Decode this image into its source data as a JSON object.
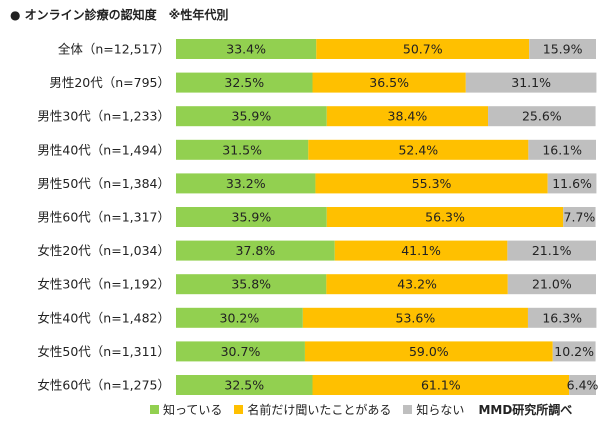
{
  "title": "オンライン診療の認知度　※性年代別",
  "title_bullet": "●",
  "source": "MMD研究所調べ",
  "chart_data": {
    "type": "bar",
    "orientation": "horizontal",
    "stacked": true,
    "percent_stacked": true,
    "categories": [
      "全体（n=12,517）",
      "男性20代（n=795）",
      "男性30代（n=1,233）",
      "男性40代（n=1,494）",
      "男性50代（n=1,384）",
      "男性60代（n=1,317）",
      "女性20代（n=1,034）",
      "女性30代（n=1,192）",
      "女性40代（n=1,482）",
      "女性50代（n=1,311）",
      "女性60代（n=1,275）"
    ],
    "series": [
      {
        "name": "知っている",
        "color": "#92d050",
        "values": [
          33.4,
          32.5,
          35.9,
          31.5,
          33.2,
          35.9,
          37.8,
          35.8,
          30.2,
          30.7,
          32.5
        ]
      },
      {
        "name": "名前だけ聞いたことがある",
        "color": "#ffc000",
        "values": [
          50.7,
          36.5,
          38.4,
          52.4,
          55.3,
          56.3,
          41.1,
          43.2,
          53.6,
          59.0,
          61.1
        ]
      },
      {
        "name": "知らない",
        "color": "#bfbfbf",
        "values": [
          15.9,
          31.1,
          25.6,
          16.1,
          11.6,
          7.7,
          21.1,
          21.0,
          16.3,
          10.2,
          6.4
        ]
      }
    ],
    "value_suffix": "%",
    "legend_position": "bottom",
    "grid": false
  }
}
